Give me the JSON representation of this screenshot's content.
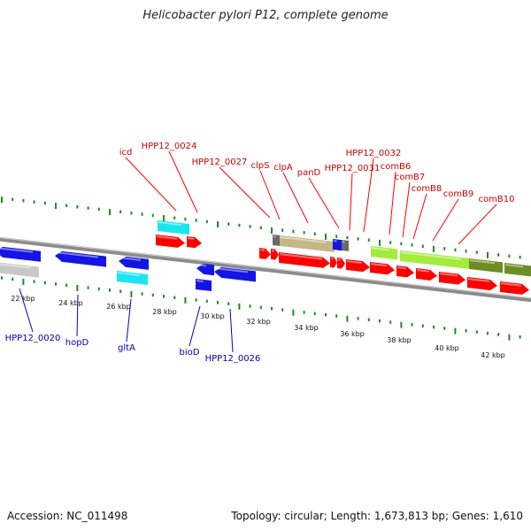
{
  "title": "Helicobacter pylori P12, complete genome",
  "footer": {
    "accession": "Accession: NC_011498",
    "topology": "Topology: circular; Length: 1,673,813 bp; Genes: 1,610"
  },
  "colors": {
    "backbone": "#8c8c8c",
    "ticks": "#1e8c1e",
    "upper_labels": "#cc0000",
    "lower_labels": "#0000aa",
    "red_gene": "#ff0000",
    "blue_gene": "#1414e6",
    "cyan_gene": "#19e6ee",
    "gray_gene": "#c8c8c8",
    "khaki_gene": "#c3b784",
    "lightgreen_gene": "#a4ec3c",
    "olive_gene": "#6f8d26"
  },
  "kbp_labels": [
    "22 kbp",
    "24 kbp",
    "26 kbp",
    "28 kbp",
    "30 kbp",
    "32 kbp",
    "34 kbp",
    "36 kbp",
    "38 kbp",
    "40 kbp",
    "42 kbp"
  ],
  "upper_genes": [
    "icd",
    "HPP12_0024",
    "HPP12_0027",
    "clpS",
    "clpA",
    "panD",
    "HPP12_0031",
    "HPP12_0032",
    "comB6",
    "comB7",
    "comB8",
    "comB9",
    "comB10"
  ],
  "lower_genes": [
    "HPP12_0020",
    "hopD",
    "gltA",
    "bioD",
    "HPP12_0026"
  ]
}
